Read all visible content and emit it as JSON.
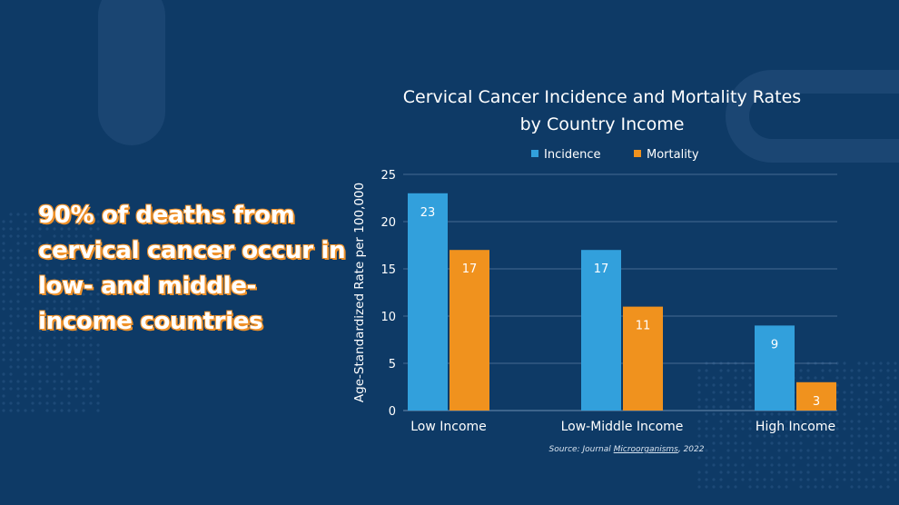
{
  "headline": "90% of deaths from cervical cancer occur in low- and middle-income countries",
  "colors": {
    "background": "#0e3a66",
    "incidence": "#32a0dc",
    "mortality": "#f0921e",
    "text": "#ffffff",
    "gridline": "#5a7da3"
  },
  "source": {
    "prefix": "Source: Journal ",
    "journal": "Microorganisms",
    "suffix": ", 2022"
  },
  "chart_data": {
    "type": "bar",
    "title": [
      "Cervical Cancer Incidence and Mortality Rates",
      "by Country Income"
    ],
    "ylabel": "Age-Standardized Rate per 100,000",
    "xlabel": "",
    "ylim": [
      0,
      25
    ],
    "yticks": [
      0,
      5,
      10,
      15,
      20,
      25
    ],
    "grid": true,
    "legend_position": "top-center",
    "categories": [
      "Low Income",
      "Low-Middle Income",
      "High Income"
    ],
    "series": [
      {
        "name": "Incidence",
        "values": [
          23,
          17,
          9
        ]
      },
      {
        "name": "Mortality",
        "values": [
          17,
          11,
          3
        ]
      }
    ],
    "data_labels": true
  }
}
